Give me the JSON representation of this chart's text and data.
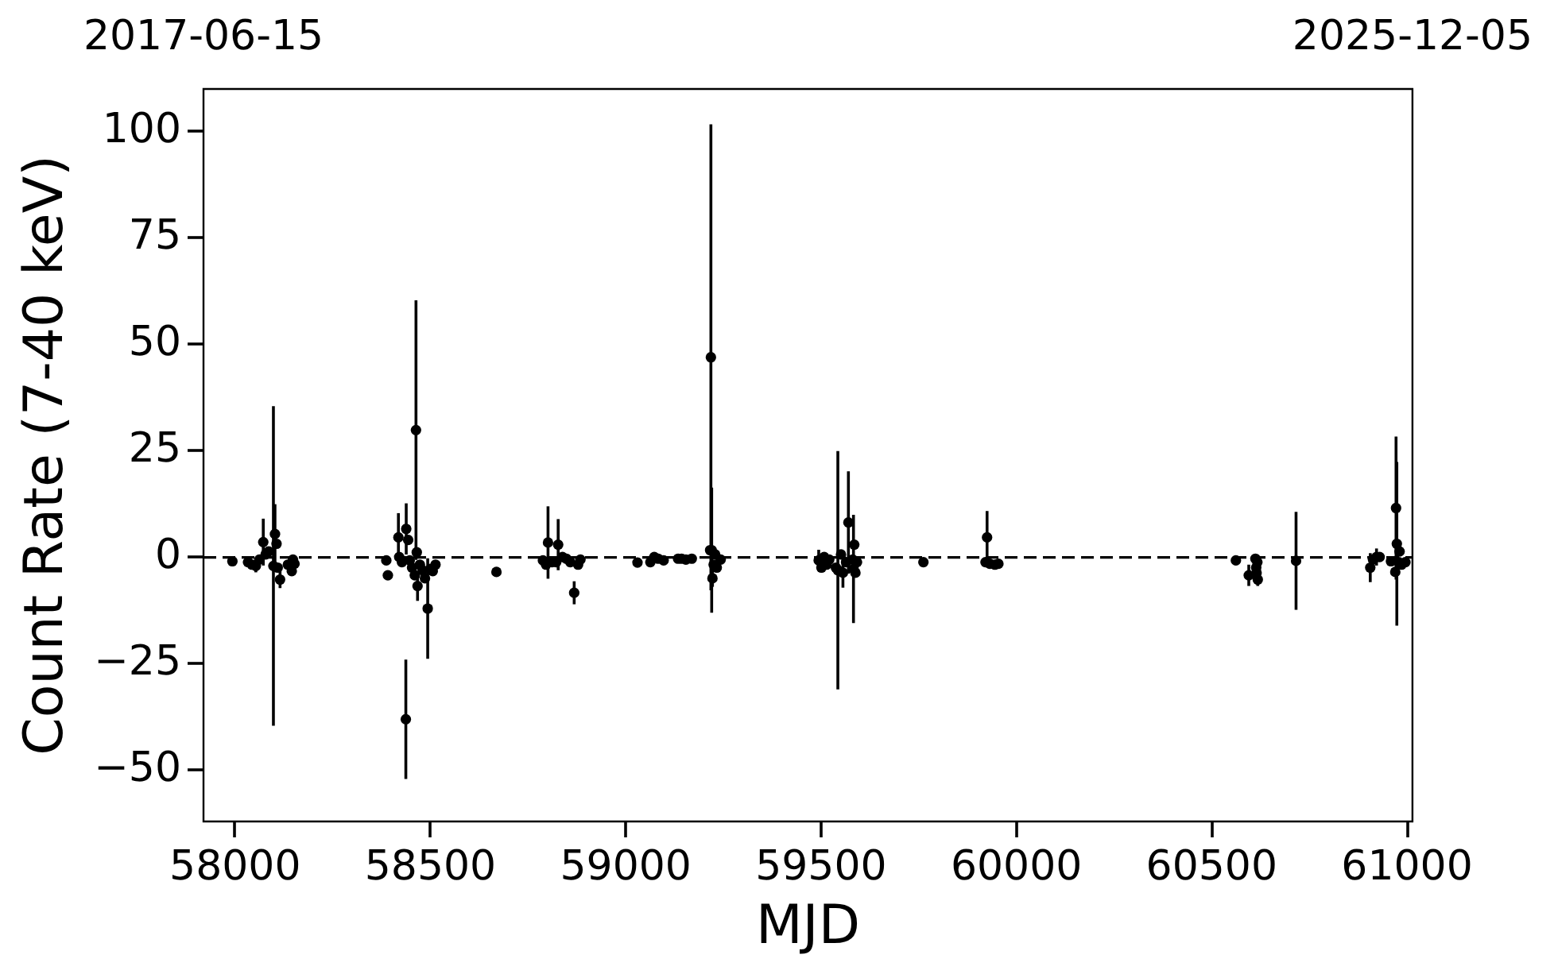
{
  "chart_data": {
    "type": "scatter",
    "xlabel": "MJD",
    "ylabel": "Count Rate (7-40 keV)",
    "x": [
      57993,
      58033,
      58043,
      58053,
      58062,
      58072,
      58078,
      58086,
      58098,
      58102,
      58106,
      58109,
      58115,
      58135,
      58145,
      58148,
      58152,
      58387,
      58391,
      58418,
      58420,
      58427,
      58438,
      58443,
      58437,
      58447,
      58453,
      58460,
      58463,
      58465,
      58467,
      58473,
      58480,
      58486,
      58493,
      58500,
      58506,
      58513,
      58669,
      58788,
      58796,
      58801,
      58811,
      58822,
      58827,
      58838,
      58848,
      58858,
      58868,
      58878,
      58884,
      59030,
      59063,
      59073,
      59083,
      59097,
      59134,
      59143,
      59154,
      59169,
      59216,
      59218,
      59220,
      59222,
      59225,
      59229,
      59233,
      59243,
      59494,
      59501,
      59508,
      59514,
      59521,
      59538,
      59543,
      59551,
      59556,
      59564,
      59570,
      59581,
      59583,
      59585,
      59588,
      59592,
      59762,
      59921,
      59925,
      59932,
      59945,
      59954,
      60562,
      60595,
      60612,
      60614,
      60615,
      60617,
      60618,
      60716,
      60906,
      60913,
      60922,
      60930,
      60959,
      60972,
      60974,
      60970,
      60979,
      60981,
      60986,
      60996
    ],
    "series": [
      {
        "color": "#000000",
        "values": [
          -0.9,
          -1.1,
          -1.7,
          -2.0,
          -0.5,
          3.6,
          0.7,
          1.4,
          -2.0,
          5.5,
          3.2,
          -2.4,
          -5.2,
          -1.7,
          -3.2,
          -0.5,
          -1.5,
          -0.7,
          -4.2,
          4.7,
          0.1,
          -1.1,
          6.7,
          4.1,
          -38,
          -0.7,
          -2.4,
          -4.2,
          29.9,
          1.2,
          -6.7,
          -1.7,
          -3.0,
          -4.9,
          -12.0,
          -2.7,
          -3.2,
          -1.7,
          -3.4,
          -0.7,
          -1.7,
          3.5,
          -1.1,
          -1.1,
          3.0,
          0.1,
          -0.3,
          -1.1,
          -8.3,
          -1.7,
          -0.5,
          -1.2,
          -1.1,
          0.1,
          -0.3,
          -0.7,
          -0.3,
          -0.3,
          -0.5,
          -0.3,
          1.7,
          47,
          1.7,
          -4.9,
          -1.7,
          0.7,
          -2.4,
          -0.5,
          -0.7,
          -2.4,
          0.1,
          -1.7,
          -0.5,
          -2.4,
          -3.0,
          0.7,
          -3.6,
          -1.1,
          8.2,
          -0.5,
          -2.7,
          3.0,
          -3.6,
          -1.1,
          -1.1,
          -1.1,
          4.7,
          -1.5,
          -1.7,
          -1.5,
          -0.7,
          -4.2,
          -0.3,
          -2.4,
          -3.6,
          -1.1,
          -5.2,
          -0.8,
          -2.4,
          -0.5,
          0.1,
          0.1,
          -0.9,
          11.6,
          3.2,
          -3.4,
          -1.1,
          1.4,
          -1.7,
          -1.1
        ],
        "errors": [
          null,
          null,
          null,
          1.5,
          null,
          5.5,
          null,
          null,
          37.5,
          7,
          null,
          null,
          2,
          null,
          null,
          null,
          null,
          null,
          null,
          5.7,
          null,
          null,
          6,
          null,
          14,
          null,
          null,
          null,
          30.5,
          null,
          3.5,
          null,
          null,
          null,
          11.8,
          null,
          null,
          null,
          1,
          null,
          null,
          8.5,
          null,
          null,
          6,
          null,
          null,
          null,
          2.7,
          null,
          null,
          null,
          null,
          null,
          null,
          null,
          null,
          null,
          null,
          null,
          null,
          54.7,
          14.7,
          2,
          null,
          null,
          null,
          null,
          2.5,
          null,
          null,
          null,
          null,
          null,
          28,
          null,
          3.5,
          null,
          12,
          null,
          12.7,
          null,
          null,
          null,
          null,
          null,
          6.2,
          null,
          null,
          null,
          null,
          2.5,
          null,
          null,
          null,
          null,
          1.5,
          11.5,
          3.4,
          null,
          2,
          null,
          null,
          16.8,
          19.2,
          null,
          null,
          null,
          null,
          null
        ]
      }
    ],
    "xlim": [
      57919,
      61014
    ],
    "xticks": [
      58000,
      58500,
      59000,
      59500,
      60000,
      60500,
      61000
    ],
    "x2lim": [
      "2017-06-15",
      "2025-12-05"
    ],
    "x2ticks": [
      "2017-06-15",
      "2025-12-05"
    ],
    "ylim": [
      -62,
      110
    ],
    "yticks": [
      {
        "value": -50,
        "label": "−50"
      },
      {
        "value": -25,
        "label": "−25"
      },
      0,
      25,
      50,
      75,
      100
    ],
    "ref_lines": [
      {
        "axis": "y",
        "value": 0,
        "color": "#000000",
        "line_style": "dashed"
      }
    ],
    "grid": false,
    "legend": false,
    "marker": "circle"
  }
}
